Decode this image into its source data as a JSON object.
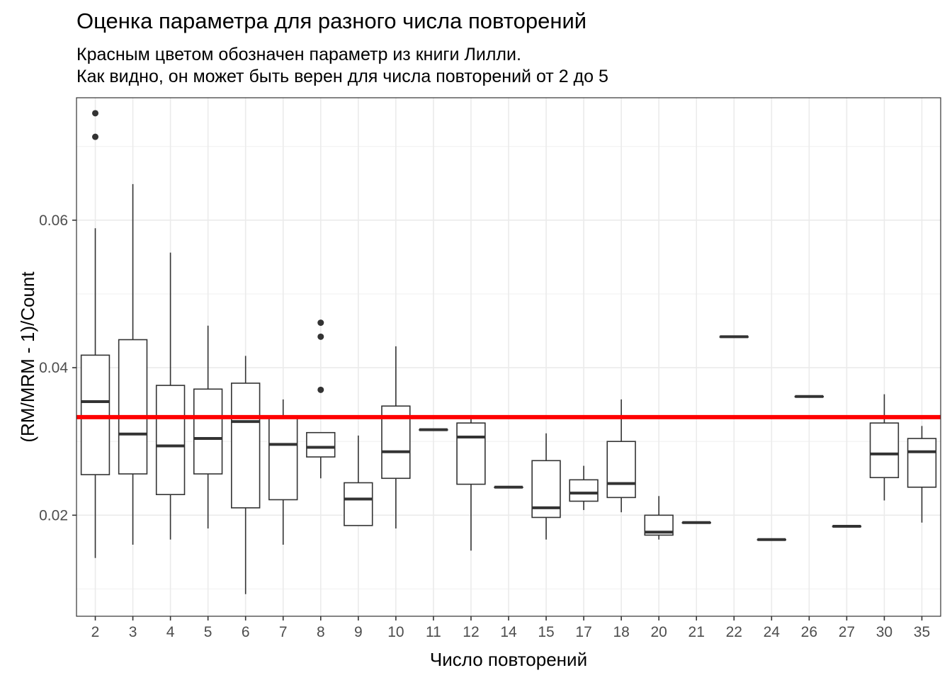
{
  "chart_data": {
    "type": "boxplot",
    "title": "Оценка параметра для разного числа повторений",
    "subtitle_lines": [
      "Красным цветом обозначен параметр из книги Лилли.",
      "Как видно, он может быть верен для числа повторений от 2 до 5"
    ],
    "xlabel": "Число повторений",
    "ylabel": "(RM/MRM - 1)/Count",
    "ylim": [
      0.0063,
      0.0766
    ],
    "y_ticks": [
      0.02,
      0.04,
      0.06
    ],
    "y_tick_labels": [
      "0.02",
      "0.04",
      "0.06"
    ],
    "grid": true,
    "reference_line": {
      "y": 0.0333,
      "color": "#ff0000"
    },
    "categories": [
      "2",
      "3",
      "4",
      "5",
      "6",
      "7",
      "8",
      "9",
      "10",
      "11",
      "12",
      "14",
      "15",
      "17",
      "18",
      "20",
      "21",
      "22",
      "24",
      "26",
      "27",
      "30",
      "35"
    ],
    "boxes": [
      {
        "category": "2",
        "min": 0.0142,
        "q1": 0.0255,
        "median": 0.0354,
        "q3": 0.0417,
        "max": 0.0589,
        "outliers": [
          0.0713,
          0.0745
        ]
      },
      {
        "category": "3",
        "min": 0.016,
        "q1": 0.0256,
        "median": 0.031,
        "q3": 0.0438,
        "max": 0.0649,
        "outliers": []
      },
      {
        "category": "4",
        "min": 0.0167,
        "q1": 0.0228,
        "median": 0.0294,
        "q3": 0.0376,
        "max": 0.0556,
        "outliers": []
      },
      {
        "category": "5",
        "min": 0.0182,
        "q1": 0.0256,
        "median": 0.0304,
        "q3": 0.0371,
        "max": 0.0457,
        "outliers": []
      },
      {
        "category": "6",
        "min": 0.0093,
        "q1": 0.021,
        "median": 0.0327,
        "q3": 0.0379,
        "max": 0.0416,
        "outliers": []
      },
      {
        "category": "7",
        "min": 0.016,
        "q1": 0.0221,
        "median": 0.0296,
        "q3": 0.0333,
        "max": 0.0357,
        "outliers": []
      },
      {
        "category": "8",
        "min": 0.025,
        "q1": 0.0279,
        "median": 0.0292,
        "q3": 0.0312,
        "max": 0.0312,
        "outliers": [
          0.037,
          0.0442,
          0.0461
        ]
      },
      {
        "category": "9",
        "min": 0.0186,
        "q1": 0.0186,
        "median": 0.0222,
        "q3": 0.0244,
        "max": 0.0308,
        "outliers": []
      },
      {
        "category": "10",
        "min": 0.0182,
        "q1": 0.025,
        "median": 0.0286,
        "q3": 0.0348,
        "max": 0.0429,
        "outliers": []
      },
      {
        "category": "11",
        "min": 0.0316,
        "q1": 0.0316,
        "median": 0.0316,
        "q3": 0.0316,
        "max": 0.0316,
        "outliers": []
      },
      {
        "category": "12",
        "min": 0.0152,
        "q1": 0.0242,
        "median": 0.0306,
        "q3": 0.0325,
        "max": 0.0333,
        "outliers": []
      },
      {
        "category": "14",
        "min": 0.0238,
        "q1": 0.0238,
        "median": 0.0238,
        "q3": 0.0238,
        "max": 0.0238,
        "outliers": []
      },
      {
        "category": "15",
        "min": 0.0167,
        "q1": 0.0197,
        "median": 0.021,
        "q3": 0.0274,
        "max": 0.0311,
        "outliers": []
      },
      {
        "category": "17",
        "min": 0.0207,
        "q1": 0.0219,
        "median": 0.023,
        "q3": 0.0248,
        "max": 0.0267,
        "outliers": []
      },
      {
        "category": "18",
        "min": 0.0204,
        "q1": 0.0224,
        "median": 0.0243,
        "q3": 0.03,
        "max": 0.0357,
        "outliers": []
      },
      {
        "category": "20",
        "min": 0.0167,
        "q1": 0.0173,
        "median": 0.0177,
        "q3": 0.02,
        "max": 0.0226,
        "outliers": []
      },
      {
        "category": "21",
        "min": 0.019,
        "q1": 0.019,
        "median": 0.019,
        "q3": 0.019,
        "max": 0.019,
        "outliers": []
      },
      {
        "category": "22",
        "min": 0.0442,
        "q1": 0.0442,
        "median": 0.0442,
        "q3": 0.0442,
        "max": 0.0442,
        "outliers": []
      },
      {
        "category": "24",
        "min": 0.0167,
        "q1": 0.0167,
        "median": 0.0167,
        "q3": 0.0167,
        "max": 0.0167,
        "outliers": []
      },
      {
        "category": "26",
        "min": 0.0361,
        "q1": 0.0361,
        "median": 0.0361,
        "q3": 0.0361,
        "max": 0.0361,
        "outliers": []
      },
      {
        "category": "27",
        "min": 0.0185,
        "q1": 0.0185,
        "median": 0.0185,
        "q3": 0.0185,
        "max": 0.0185,
        "outliers": []
      },
      {
        "category": "30",
        "min": 0.022,
        "q1": 0.0251,
        "median": 0.0283,
        "q3": 0.0325,
        "max": 0.0364,
        "outliers": []
      },
      {
        "category": "35",
        "min": 0.019,
        "q1": 0.0238,
        "median": 0.0286,
        "q3": 0.0304,
        "max": 0.0321,
        "outliers": []
      }
    ]
  }
}
